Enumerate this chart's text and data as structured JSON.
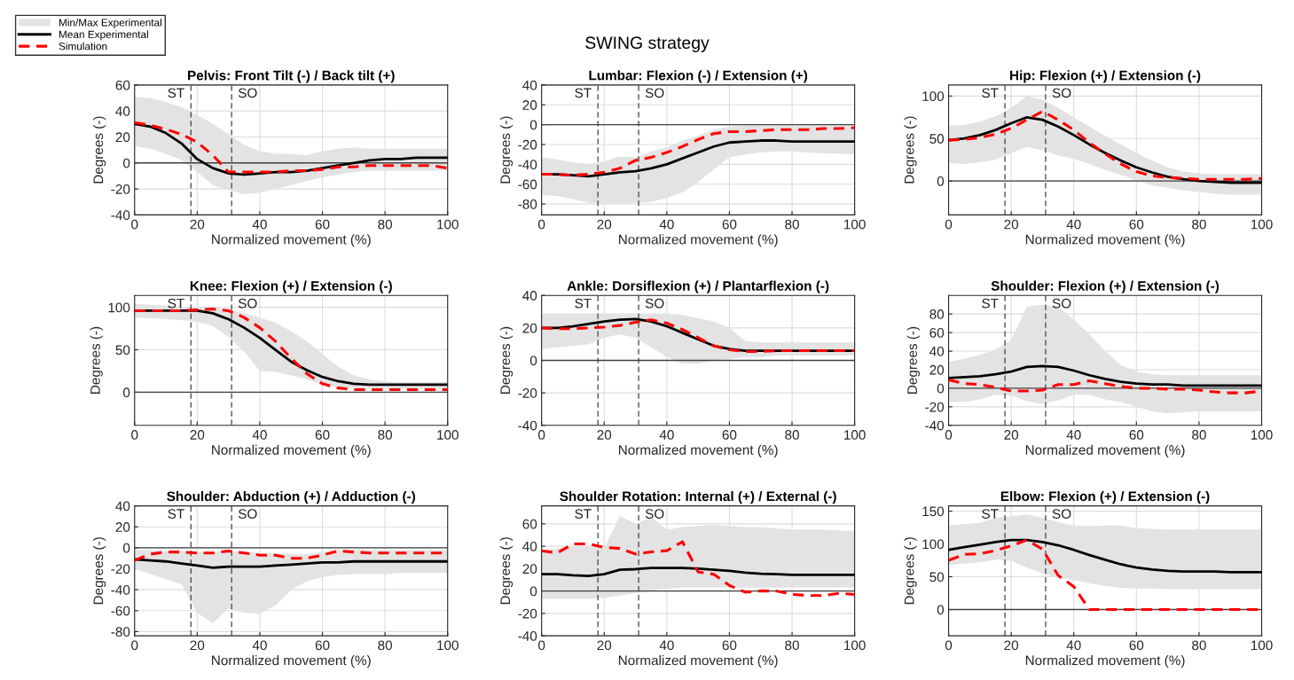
{
  "chart_data": [
    {
      "type": "line",
      "title": "Pelvis: Front Tilt (-) / Back tilt (+)",
      "xlabel": "Normalized movement (%)",
      "ylabel": "Degrees (-)",
      "annotations": [
        "SWING strategy",
        "Min/Max Experimental"
      ],
      "legend": "top left",
      "grid": true,
      "x": [
        0,
        5,
        10,
        15,
        20,
        25,
        30,
        35,
        40,
        45,
        50,
        55,
        60,
        65,
        70,
        75,
        80,
        85,
        90,
        95,
        100
      ],
      "xlim": [
        0,
        100
      ],
      "xticks": [
        0,
        20,
        40,
        60,
        80,
        100
      ],
      "ylim": [
        -40,
        60
      ],
      "yticks": [
        -40,
        -20,
        0,
        20,
        40,
        60
      ],
      "ref_lines": [
        {
          "axis": "x",
          "value": 18,
          "label": "ST",
          "color": "#404040",
          "line_style": "dashed"
        },
        {
          "axis": "x",
          "value": 31,
          "label": "SO",
          "color": "#404040",
          "line_style": "dashed"
        },
        {
          "axis": "y",
          "value": 0,
          "label": null,
          "color": "#404040",
          "line_style": "solid"
        }
      ],
      "series": [
        {
          "name": "Mean Experimental",
          "color": "#000000",
          "line_style": "solid",
          "values": [
            30,
            28,
            23,
            15,
            3,
            -4,
            -8,
            -9,
            -8,
            -7,
            -7,
            -6,
            -4,
            -2,
            0,
            2,
            3,
            3,
            4,
            4,
            4
          ],
          "lower": [
            13,
            11,
            7,
            2,
            -7,
            -17,
            -21,
            -24,
            -23,
            -20,
            -17,
            -14,
            -11,
            -9,
            -7,
            -6,
            -6,
            -6,
            -6,
            -6,
            -6
          ],
          "upper": [
            51,
            50,
            47,
            43,
            37,
            30,
            22,
            14,
            9,
            7,
            7,
            6,
            9,
            11,
            12,
            11,
            11,
            11,
            11,
            11,
            11
          ]
        },
        {
          "name": "Simulation",
          "color": "#ff0000",
          "line_style": "dashed",
          "values": [
            31,
            29,
            26,
            22,
            16,
            6,
            -7,
            -7,
            -7,
            -7,
            -6,
            -6,
            -5,
            -3,
            -3,
            -2,
            -2,
            -2,
            -2,
            -2,
            -4
          ]
        }
      ]
    },
    {
      "type": "line",
      "title": "Lumbar: Flexion (-) / Extension (+)",
      "xlabel": "Normalized movement (%)",
      "ylabel": "Degrees (-)",
      "grid": true,
      "x": [
        0,
        5,
        10,
        15,
        20,
        25,
        30,
        35,
        40,
        45,
        50,
        55,
        60,
        65,
        70,
        75,
        80,
        85,
        90,
        95,
        100
      ],
      "xlim": [
        0,
        100
      ],
      "xticks": [
        0,
        20,
        40,
        60,
        80,
        100
      ],
      "ylim": [
        -91,
        40
      ],
      "yticks": [
        -80,
        -60,
        -40,
        -20,
        0,
        20,
        40
      ],
      "ref_lines": [
        {
          "axis": "x",
          "value": 18,
          "label": "ST",
          "color": "#404040",
          "line_style": "dashed"
        },
        {
          "axis": "x",
          "value": 31,
          "label": "SO",
          "color": "#404040",
          "line_style": "dashed"
        },
        {
          "axis": "y",
          "value": 0,
          "label": null,
          "color": "#404040",
          "line_style": "solid"
        }
      ],
      "series": [
        {
          "color": "#000000",
          "line_style": "solid",
          "values": [
            -50,
            -50,
            -51,
            -52,
            -50,
            -48,
            -47,
            -44,
            -40,
            -34,
            -28,
            -22,
            -18,
            -17,
            -16,
            -16,
            -17,
            -17,
            -17,
            -17,
            -17
          ],
          "lower": [
            -71,
            -72,
            -75,
            -79,
            -80,
            -79,
            -79,
            -78,
            -74,
            -68,
            -58,
            -45,
            -33,
            -30,
            -28,
            -27,
            -27,
            -28,
            -29,
            -29,
            -30
          ],
          "upper": [
            -33,
            -35,
            -38,
            -40,
            -37,
            -32,
            -33,
            -27,
            -23,
            -16,
            -11,
            -5,
            -2,
            -1,
            -1,
            -1,
            -1,
            -1,
            -1,
            -1,
            -1
          ]
        },
        {
          "color": "#ff0000",
          "line_style": "dashed",
          "values": [
            -50,
            -50,
            -51,
            -50,
            -48,
            -44,
            -36,
            -33,
            -28,
            -22,
            -15,
            -9,
            -7,
            -7,
            -6,
            -5,
            -5,
            -5,
            -4,
            -4,
            -3
          ]
        }
      ]
    },
    {
      "type": "line",
      "title": "Hip: Flexion (+) / Extension (-)",
      "xlabel": "Normalized movement (%)",
      "ylabel": "Degrees (-)",
      "grid": true,
      "x": [
        0,
        5,
        10,
        15,
        20,
        25,
        30,
        35,
        40,
        45,
        50,
        55,
        60,
        65,
        70,
        75,
        80,
        85,
        90,
        95,
        100
      ],
      "xlim": [
        0,
        100
      ],
      "xticks": [
        0,
        20,
        40,
        60,
        80,
        100
      ],
      "ylim": [
        -40,
        113
      ],
      "yticks": [
        0,
        50,
        100
      ],
      "ref_lines": [
        {
          "axis": "x",
          "value": 18,
          "label": "ST",
          "color": "#404040",
          "line_style": "dashed"
        },
        {
          "axis": "x",
          "value": 31,
          "label": "SO",
          "color": "#404040",
          "line_style": "dashed"
        },
        {
          "axis": "y",
          "value": 0,
          "label": null,
          "color": "#404040",
          "line_style": "solid"
        }
      ],
      "series": [
        {
          "color": "#000000",
          "line_style": "solid",
          "values": [
            48,
            50,
            54,
            60,
            68,
            75,
            72,
            64,
            54,
            43,
            33,
            24,
            16,
            10,
            5,
            2,
            0,
            -1,
            -2,
            -2,
            -2
          ],
          "lower": [
            21,
            20,
            22,
            25,
            33,
            40,
            36,
            30,
            26,
            20,
            13,
            7,
            1,
            -5,
            -8,
            -11,
            -13,
            -15,
            -16,
            -16,
            -16
          ],
          "upper": [
            65,
            66,
            70,
            76,
            86,
            100,
            96,
            86,
            75,
            64,
            53,
            43,
            33,
            24,
            16,
            11,
            9,
            8,
            8,
            8,
            8
          ]
        },
        {
          "color": "#ff0000",
          "line_style": "dashed",
          "values": [
            48,
            49,
            51,
            55,
            62,
            72,
            82,
            72,
            60,
            45,
            32,
            20,
            11,
            6,
            4,
            3,
            2,
            2,
            2,
            2,
            3
          ]
        }
      ]
    },
    {
      "type": "line",
      "title": "Knee: Flexion (+) / Extension (-)",
      "xlabel": "Normalized movement (%)",
      "ylabel": "Degrees (-)",
      "grid": true,
      "x": [
        0,
        5,
        10,
        15,
        20,
        25,
        30,
        35,
        40,
        45,
        50,
        55,
        60,
        65,
        70,
        75,
        80,
        85,
        90,
        95,
        100
      ],
      "xlim": [
        0,
        100
      ],
      "xticks": [
        0,
        20,
        40,
        60,
        80,
        100
      ],
      "ylim": [
        -39,
        114
      ],
      "yticks": [
        0,
        50,
        100
      ],
      "ref_lines": [
        {
          "axis": "x",
          "value": 18,
          "label": "ST",
          "color": "#404040",
          "line_style": "dashed"
        },
        {
          "axis": "x",
          "value": 31,
          "label": "SO",
          "color": "#404040",
          "line_style": "dashed"
        },
        {
          "axis": "y",
          "value": 0,
          "label": null,
          "color": "#404040",
          "line_style": "solid"
        }
      ],
      "series": [
        {
          "color": "#000000",
          "line_style": "solid",
          "values": [
            96,
            96,
            96,
            96,
            96,
            93,
            86,
            76,
            64,
            50,
            36,
            26,
            18,
            13,
            10,
            9,
            9,
            9,
            9,
            9,
            9
          ],
          "lower": [
            88,
            87,
            86,
            85,
            83,
            78,
            65,
            48,
            25,
            24,
            20,
            15,
            9,
            6,
            5,
            4,
            4,
            4,
            4,
            4,
            4
          ],
          "upper": [
            104,
            103,
            102,
            101,
            100,
            100,
            98,
            93,
            88,
            82,
            72,
            60,
            45,
            30,
            20,
            15,
            13,
            12,
            12,
            12,
            12
          ]
        },
        {
          "color": "#ff0000",
          "line_style": "dashed",
          "values": [
            96,
            96,
            96,
            96,
            97,
            98,
            96,
            88,
            76,
            60,
            40,
            22,
            10,
            5,
            3,
            3,
            3,
            3,
            3,
            3,
            3
          ]
        }
      ]
    },
    {
      "type": "line",
      "title": "Ankle: Dorsiflexion (+) / Plantarflexion (-)",
      "xlabel": "Normalized movement (%)",
      "ylabel": "Degrees (-)",
      "grid": true,
      "x": [
        0,
        5,
        10,
        15,
        20,
        25,
        30,
        35,
        40,
        45,
        50,
        55,
        60,
        65,
        70,
        75,
        80,
        85,
        90,
        95,
        100
      ],
      "xlim": [
        0,
        100
      ],
      "xticks": [
        0,
        20,
        40,
        60,
        80,
        100
      ],
      "ylim": [
        -40,
        40
      ],
      "yticks": [
        -40,
        -20,
        0,
        20,
        40
      ],
      "ref_lines": [
        {
          "axis": "x",
          "value": 18,
          "label": "ST",
          "color": "#404040",
          "line_style": "dashed"
        },
        {
          "axis": "x",
          "value": 31,
          "label": "SO",
          "color": "#404040",
          "line_style": "dashed"
        },
        {
          "axis": "y",
          "value": 0,
          "label": null,
          "color": "#404040",
          "line_style": "solid"
        }
      ],
      "series": [
        {
          "color": "#000000",
          "line_style": "solid",
          "values": [
            20,
            20,
            21,
            22.5,
            24,
            25,
            25.5,
            24,
            21,
            17,
            13,
            9,
            7,
            6,
            6,
            6,
            6,
            6,
            6,
            6,
            6
          ],
          "lower": [
            7,
            8,
            9,
            10,
            14,
            16,
            14,
            8,
            2,
            -2,
            -2,
            0,
            1,
            2,
            2,
            3,
            3,
            3,
            3,
            3,
            3
          ],
          "upper": [
            29,
            29,
            29,
            29,
            29,
            29,
            29,
            29,
            29,
            28,
            26,
            24,
            20,
            12,
            11,
            11,
            11,
            11,
            11,
            11,
            11
          ]
        },
        {
          "color": "#ff0000",
          "line_style": "dashed",
          "values": [
            20,
            19.5,
            19.5,
            20,
            20.5,
            21.5,
            23.5,
            25,
            23,
            19,
            14,
            9,
            6.5,
            5.5,
            5.5,
            6,
            6,
            6,
            6,
            6,
            6
          ]
        }
      ]
    },
    {
      "type": "line",
      "title": "Shoulder: Flexion (+) / Extension (-)",
      "xlabel": "Normalized movement (%)",
      "ylabel": "Degrees (-)",
      "grid": true,
      "x": [
        0,
        5,
        10,
        15,
        20,
        25,
        30,
        35,
        40,
        45,
        50,
        55,
        60,
        65,
        70,
        75,
        80,
        85,
        90,
        95,
        100
      ],
      "xlim": [
        0,
        100
      ],
      "xticks": [
        0,
        20,
        40,
        60,
        80,
        100
      ],
      "ylim": [
        -40,
        100
      ],
      "yticks": [
        -40,
        -20,
        0,
        20,
        40,
        60,
        80
      ],
      "ref_lines": [
        {
          "axis": "x",
          "value": 18,
          "label": "ST",
          "color": "#404040",
          "line_style": "dashed"
        },
        {
          "axis": "x",
          "value": 31,
          "label": "SO",
          "color": "#404040",
          "line_style": "dashed"
        },
        {
          "axis": "y",
          "value": 0,
          "label": null,
          "color": "#404040",
          "line_style": "solid"
        }
      ],
      "series": [
        {
          "color": "#000000",
          "line_style": "solid",
          "values": [
            11,
            12,
            13,
            15,
            18,
            23,
            24,
            23,
            19,
            14,
            10,
            7,
            5,
            4,
            4,
            3,
            3,
            3,
            3,
            3,
            3
          ],
          "lower": [
            -15,
            -15,
            -12,
            -7,
            -8,
            -14,
            -17,
            -13,
            -7,
            -7,
            -12,
            -15,
            -20,
            -25,
            -27,
            -26,
            -25,
            -25,
            -25,
            -25,
            -25
          ],
          "upper": [
            28,
            32,
            36,
            42,
            52,
            88,
            90,
            88,
            74,
            58,
            40,
            25,
            18,
            15,
            14,
            14,
            14,
            14,
            14,
            14,
            14
          ]
        },
        {
          "color": "#ff0000",
          "line_style": "dashed",
          "values": [
            9,
            5,
            4,
            1,
            -3,
            -3,
            -2,
            4,
            4,
            8,
            5,
            2,
            0,
            0,
            -1,
            -1,
            -2,
            -4,
            -5,
            -5,
            -3
          ]
        }
      ]
    },
    {
      "type": "line",
      "title": "Shoulder: Abduction (+) / Adduction (-)",
      "xlabel": "Normalized movement (%)",
      "ylabel": "Degrees (-)",
      "grid": true,
      "x": [
        0,
        5,
        10,
        15,
        20,
        25,
        30,
        35,
        40,
        45,
        50,
        55,
        60,
        65,
        70,
        75,
        80,
        85,
        90,
        95,
        100
      ],
      "xlim": [
        0,
        100
      ],
      "xticks": [
        0,
        20,
        40,
        60,
        80,
        100
      ],
      "ylim": [
        -84,
        40
      ],
      "yticks": [
        -80,
        -60,
        -40,
        -20,
        0,
        20,
        40
      ],
      "ref_lines": [
        {
          "axis": "x",
          "value": 18,
          "label": "ST",
          "color": "#404040",
          "line_style": "dashed"
        },
        {
          "axis": "x",
          "value": 31,
          "label": "SO",
          "color": "#404040",
          "line_style": "dashed"
        },
        {
          "axis": "y",
          "value": 0,
          "label": null,
          "color": "#404040",
          "line_style": "solid"
        }
      ],
      "series": [
        {
          "color": "#000000",
          "line_style": "solid",
          "values": [
            -11,
            -12,
            -13,
            -15,
            -17,
            -19,
            -18,
            -18,
            -18,
            -17,
            -16,
            -15,
            -14,
            -14,
            -13,
            -13,
            -13,
            -13,
            -13,
            -13,
            -13
          ],
          "lower": [
            -20,
            -25,
            -30,
            -35,
            -62,
            -72,
            -58,
            -62,
            -63,
            -55,
            -40,
            -32,
            -28,
            -26,
            -25,
            -25,
            -25,
            -24,
            -24,
            -24,
            -24
          ],
          "upper": [
            -2,
            -2,
            -3,
            -3,
            -4,
            -4,
            -3,
            -4,
            -5,
            -5,
            -6,
            -6,
            -4,
            -2,
            -2,
            -2,
            -2,
            -2,
            -2,
            -2,
            -2
          ]
        },
        {
          "color": "#ff0000",
          "line_style": "dashed",
          "values": [
            -12,
            -6,
            -4,
            -4,
            -5,
            -5,
            -3,
            -5,
            -7,
            -7,
            -10,
            -10,
            -7,
            -3,
            -4,
            -5,
            -5,
            -5,
            -5,
            -5,
            -5
          ]
        }
      ]
    },
    {
      "type": "line",
      "title": "Shoulder Rotation: Internal (+) / External (-)",
      "xlabel": "Normalized movement (%)",
      "ylabel": "Degrees (-)",
      "grid": true,
      "x": [
        0,
        5,
        10,
        15,
        20,
        25,
        30,
        35,
        40,
        45,
        50,
        55,
        60,
        65,
        70,
        75,
        80,
        85,
        90,
        95,
        100
      ],
      "xlim": [
        0,
        100
      ],
      "xticks": [
        0,
        20,
        40,
        60,
        80,
        100
      ],
      "ylim": [
        -40,
        76
      ],
      "yticks": [
        -40,
        -20,
        0,
        20,
        40,
        60
      ],
      "ref_lines": [
        {
          "axis": "x",
          "value": 18,
          "label": "ST",
          "color": "#404040",
          "line_style": "dashed"
        },
        {
          "axis": "x",
          "value": 31,
          "label": "SO",
          "color": "#404040",
          "line_style": "dashed"
        },
        {
          "axis": "y",
          "value": 0,
          "label": null,
          "color": "#404040",
          "line_style": "solid"
        }
      ],
      "series": [
        {
          "color": "#000000",
          "line_style": "solid",
          "values": [
            15,
            15,
            14,
            13.5,
            15,
            19,
            19.5,
            20.5,
            20.5,
            20.5,
            20,
            19,
            18,
            16.5,
            15.5,
            15,
            14.5,
            14.5,
            14.5,
            14.5,
            14.5
          ],
          "lower": [
            -7,
            -7,
            -7,
            -7,
            -6,
            -4,
            -2,
            0,
            2,
            3,
            3,
            3,
            3,
            3,
            3,
            3,
            3,
            3,
            3,
            3,
            3
          ],
          "upper": [
            35,
            38,
            40,
            40,
            38,
            67,
            60,
            66,
            55,
            57,
            58,
            59,
            58,
            57,
            57,
            56,
            55,
            55,
            55,
            54,
            54
          ]
        },
        {
          "color": "#ff0000",
          "line_style": "dashed",
          "values": [
            36,
            34,
            42,
            42,
            39,
            38,
            33,
            35,
            36,
            44,
            17,
            15,
            5,
            -1,
            0,
            0,
            -3,
            -4,
            -4,
            -2,
            -3
          ]
        }
      ]
    },
    {
      "type": "line",
      "title": "Elbow: Flexion (+) / Extension (-)",
      "xlabel": "Normalized movement (%)",
      "ylabel": "Degrees (-)",
      "grid": true,
      "x": [
        0,
        5,
        10,
        15,
        20,
        25,
        30,
        35,
        40,
        45,
        50,
        55,
        60,
        65,
        70,
        75,
        80,
        85,
        90,
        95,
        100
      ],
      "xlim": [
        0,
        100
      ],
      "xticks": [
        0,
        20,
        40,
        60,
        80,
        100
      ],
      "ylim": [
        -40,
        158
      ],
      "yticks": [
        0,
        50,
        100,
        150
      ],
      "ref_lines": [
        {
          "axis": "x",
          "value": 18,
          "label": "ST",
          "color": "#404040",
          "line_style": "dashed"
        },
        {
          "axis": "x",
          "value": 31,
          "label": "SO",
          "color": "#404040",
          "line_style": "dashed"
        },
        {
          "axis": "y",
          "value": 0,
          "label": null,
          "color": "#404040",
          "line_style": "solid"
        }
      ],
      "series": [
        {
          "color": "#000000",
          "line_style": "solid",
          "values": [
            91,
            95,
            99,
            103,
            106,
            106,
            103,
            98,
            91,
            83,
            76,
            69,
            64,
            61,
            59,
            58,
            58,
            58,
            57,
            57,
            57
          ],
          "lower": [
            68,
            70,
            72,
            76,
            74,
            64,
            55,
            48,
            45,
            40,
            36,
            33,
            32,
            32,
            31,
            31,
            31,
            31,
            31,
            31,
            31
          ],
          "upper": [
            128,
            130,
            132,
            140,
            142,
            145,
            140,
            133,
            128,
            127,
            128,
            128,
            124,
            123,
            122,
            122,
            122,
            122,
            122,
            122,
            122
          ]
        },
        {
          "color": "#ff0000",
          "line_style": "dashed",
          "values": [
            75,
            84,
            85,
            90,
            97,
            106,
            92,
            52,
            35,
            0,
            0,
            0,
            0,
            0,
            0,
            0,
            0,
            0,
            0,
            0,
            0
          ]
        }
      ]
    }
  ]
}
